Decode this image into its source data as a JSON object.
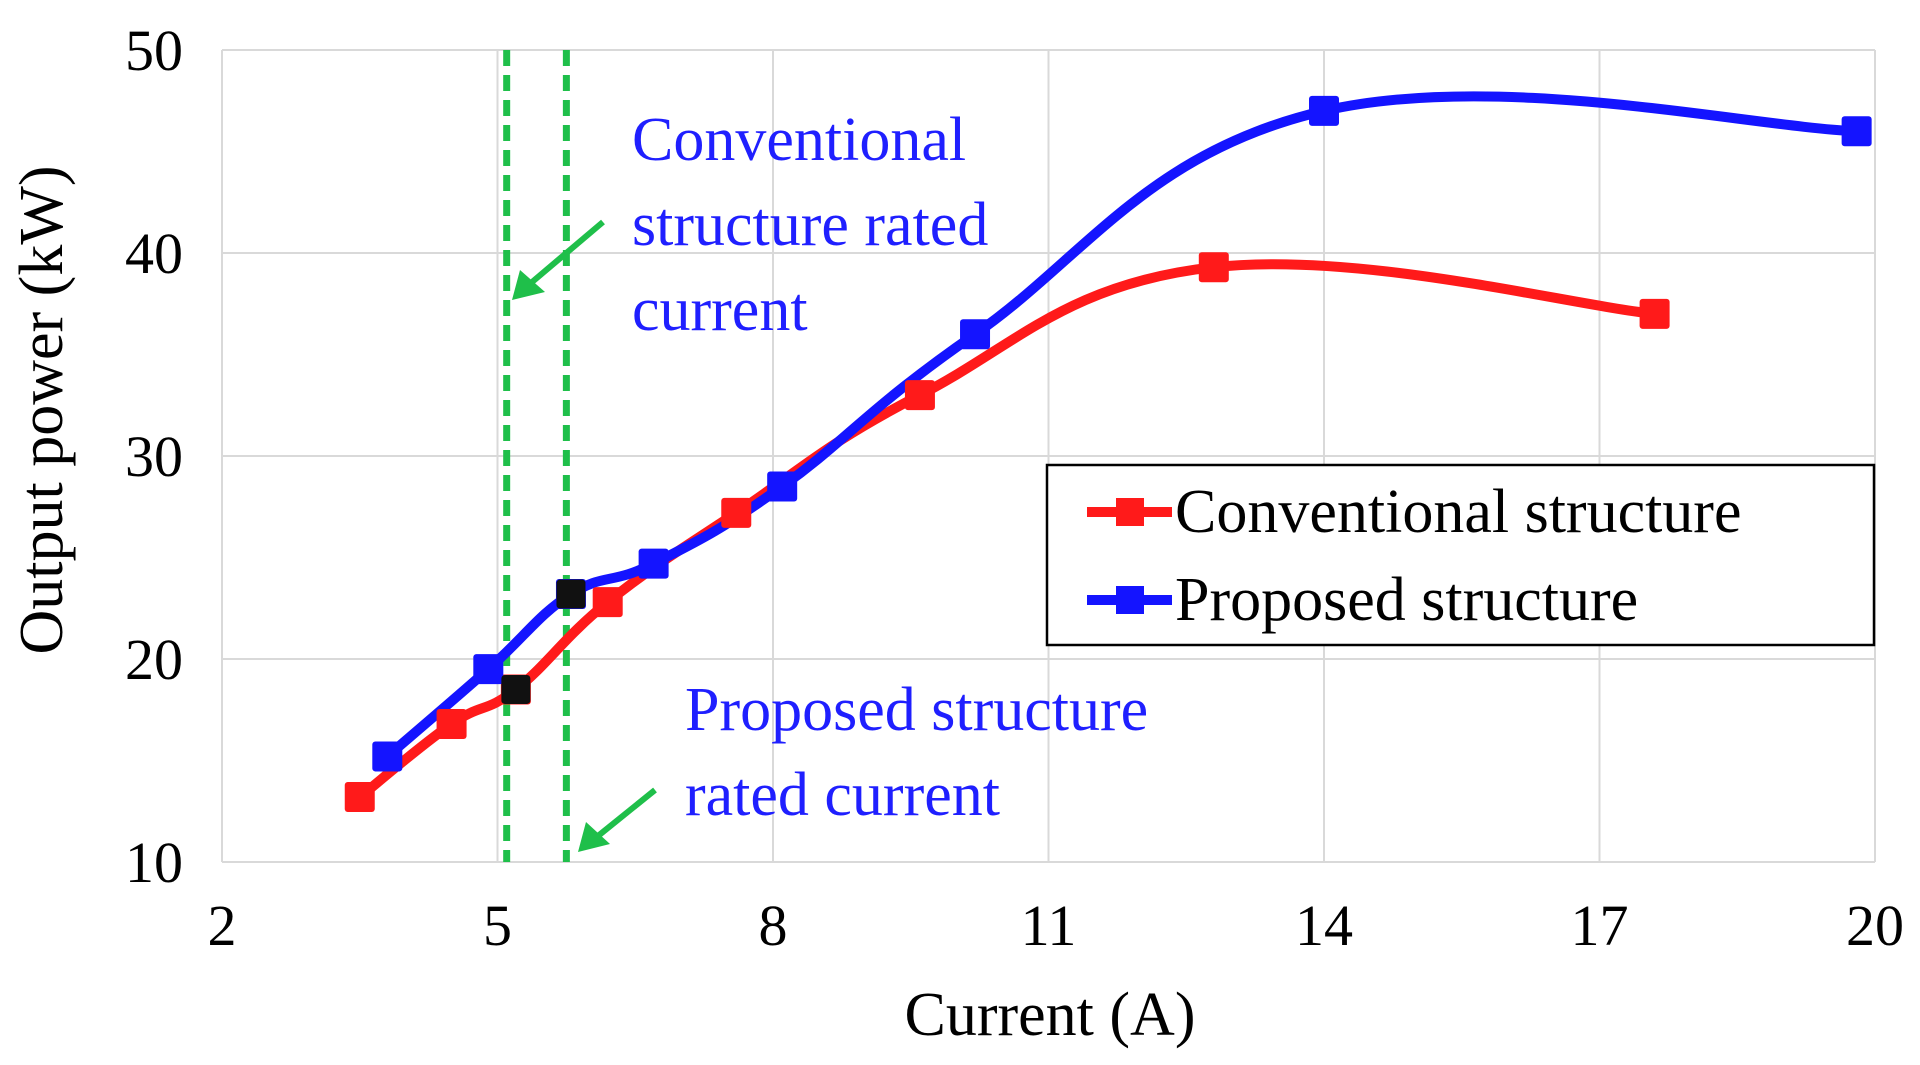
{
  "chart_data": {
    "type": "line",
    "xlabel": "Current (A)",
    "ylabel": "Output power (kW)",
    "xlim": [
      2,
      20
    ],
    "ylim": [
      10,
      50
    ],
    "xticks": [
      2,
      5,
      8,
      11,
      14,
      17,
      20
    ],
    "yticks": [
      10,
      20,
      30,
      40,
      50
    ],
    "grid": true,
    "legend_position": "center-right",
    "series": [
      {
        "name": "Conventional structure",
        "color": "#ff1a1a",
        "x": [
          3.5,
          4.5,
          5.2,
          6.2,
          7.6,
          9.6,
          12.8,
          17.6
        ],
        "y": [
          13.2,
          16.8,
          18.5,
          22.8,
          27.2,
          33.0,
          39.3,
          37.0
        ]
      },
      {
        "name": "Proposed structure",
        "color": "#1414ff",
        "x": [
          3.8,
          4.9,
          5.8,
          6.7,
          8.1,
          10.2,
          14.0,
          19.8
        ],
        "y": [
          15.2,
          19.5,
          23.2,
          24.7,
          28.5,
          36.0,
          47.0,
          46.0
        ]
      }
    ],
    "rated_lines": [
      {
        "x": 5.1,
        "color": "#1fbf4a"
      },
      {
        "x": 5.75,
        "color": "#1fbf4a"
      }
    ],
    "rated_points": [
      {
        "x": 5.2,
        "y": 18.5
      },
      {
        "x": 5.8,
        "y": 23.2
      }
    ],
    "annotations": [
      {
        "lines": [
          "Conventional",
          "structure rated",
          "current"
        ],
        "color": "#1f1fff"
      },
      {
        "lines": [
          "Proposed structure",
          "rated current"
        ],
        "color": "#1f1fff"
      }
    ]
  }
}
